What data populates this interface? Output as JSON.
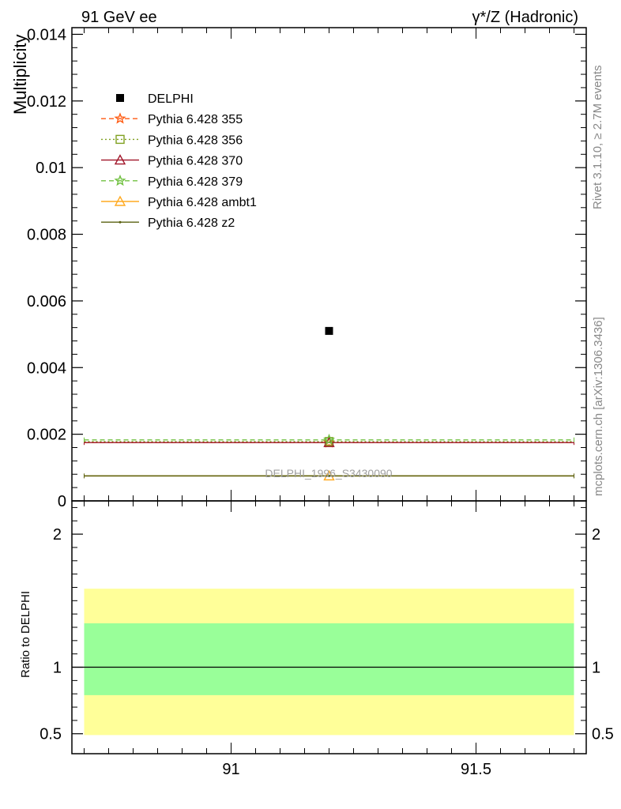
{
  "header": {
    "left_title": "91 GeV ee",
    "right_title": "γ*/Z (Hadronic)"
  },
  "side_text": {
    "rivet": "Rivet 3.1.10, ≥ 2.7M events",
    "mcplots": "mcplots.cern.ch [arXiv:1306.3436]"
  },
  "watermark": "DELPHI_1996_S3430090",
  "chart_data": [
    {
      "type": "scatter",
      "ylabel": "Multiplicity",
      "xlim": [
        90.675,
        91.725
      ],
      "ylim": [
        0,
        0.0142
      ],
      "yticks": [
        0,
        0.002,
        0.004,
        0.006,
        0.008,
        0.01,
        0.012,
        0.014
      ],
      "ytick_labels": [
        "0",
        "0.002",
        "0.004",
        "0.006",
        "0.008",
        "0.01",
        "0.012",
        "0.014"
      ],
      "x_range": [
        90.7,
        91.7
      ],
      "data": {
        "name": "DELPHI",
        "x": 91.2,
        "y": 0.0051,
        "color": "#000000",
        "marker": "square"
      },
      "series": [
        {
          "name": "Pythia 6.428 355",
          "y": 0.00175,
          "color": "#ff5a10",
          "dash": "dashed",
          "marker": "star"
        },
        {
          "name": "Pythia 6.428 356",
          "y": 0.00178,
          "color": "#7fa020",
          "dash": "dotted",
          "marker": "open-square"
        },
        {
          "name": "Pythia 6.428 370",
          "y": 0.00175,
          "color": "#a01428",
          "dash": "solid",
          "marker": "open-triangle"
        },
        {
          "name": "Pythia 6.428 379",
          "y": 0.00183,
          "color": "#70c040",
          "dash": "dashed",
          "marker": "star"
        },
        {
          "name": "Pythia 6.428 ambt1",
          "y": 0.00075,
          "color": "#ffaa20",
          "dash": "solid",
          "marker": "open-triangle"
        },
        {
          "name": "Pythia 6.428 z2",
          "y": 0.00075,
          "color": "#5a6010",
          "dash": "solid",
          "marker": "dot"
        }
      ],
      "legend_position": "top-left"
    },
    {
      "type": "area",
      "ylabel": "Ratio to DELPHI",
      "xlim": [
        90.675,
        91.725
      ],
      "ylim": [
        0.35,
        2.25
      ],
      "yticks": [
        0.5,
        1,
        2
      ],
      "ytick_labels": [
        "0.5",
        "1",
        "2"
      ],
      "xticks": [
        91,
        91.5
      ],
      "xtick_labels": [
        "91",
        "91.5"
      ],
      "bands": [
        {
          "name": "yellow",
          "low": 0.49,
          "high": 1.59,
          "color": "#ffff99"
        },
        {
          "name": "green",
          "low": 0.79,
          "high": 1.33,
          "color": "#99ff99"
        }
      ],
      "reference_line": 1,
      "x_range": [
        90.7,
        91.7
      ]
    }
  ]
}
